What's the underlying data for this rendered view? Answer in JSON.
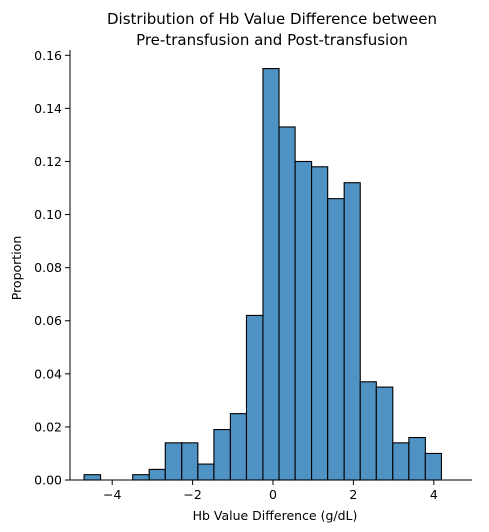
{
  "chart_data": {
    "type": "bar",
    "title_lines": [
      "Distribution of Hb Value Difference between",
      "Pre-transfusion and Post-transfusion"
    ],
    "xlabel": "Hb Value Difference (g/dL)",
    "ylabel": "Proportion",
    "xlim": [
      -5.05,
      4.95
    ],
    "ylim": [
      0,
      0.162
    ],
    "xticks": [
      -4,
      -2,
      0,
      2,
      4
    ],
    "xtick_labels": [
      "−4",
      "−2",
      "0",
      "2",
      "4"
    ],
    "yticks": [
      0.0,
      0.02,
      0.04,
      0.06,
      0.08,
      0.1,
      0.12,
      0.14,
      0.16
    ],
    "ytick_labels": [
      "0.00",
      "0.02",
      "0.04",
      "0.06",
      "0.08",
      "0.10",
      "0.12",
      "0.14",
      "0.16"
    ],
    "bins": [
      {
        "x0": -4.7,
        "x1": -4.29,
        "value": 0.002
      },
      {
        "x0": -4.29,
        "x1": -3.89,
        "value": 0.0
      },
      {
        "x0": -3.89,
        "x1": -3.49,
        "value": 0.0
      },
      {
        "x0": -3.49,
        "x1": -3.08,
        "value": 0.002
      },
      {
        "x0": -3.08,
        "x1": -2.68,
        "value": 0.004
      },
      {
        "x0": -2.68,
        "x1": -2.27,
        "value": 0.014
      },
      {
        "x0": -2.27,
        "x1": -1.87,
        "value": 0.014
      },
      {
        "x0": -1.87,
        "x1": -1.47,
        "value": 0.006
      },
      {
        "x0": -1.47,
        "x1": -1.06,
        "value": 0.019
      },
      {
        "x0": -1.06,
        "x1": -0.66,
        "value": 0.025
      },
      {
        "x0": -0.66,
        "x1": -0.25,
        "value": 0.062
      },
      {
        "x0": -0.25,
        "x1": 0.15,
        "value": 0.155
      },
      {
        "x0": 0.15,
        "x1": 0.55,
        "value": 0.133
      },
      {
        "x0": 0.55,
        "x1": 0.96,
        "value": 0.12
      },
      {
        "x0": 0.96,
        "x1": 1.36,
        "value": 0.118
      },
      {
        "x0": 1.36,
        "x1": 1.77,
        "value": 0.106
      },
      {
        "x0": 1.77,
        "x1": 2.17,
        "value": 0.112
      },
      {
        "x0": 2.17,
        "x1": 2.57,
        "value": 0.037
      },
      {
        "x0": 2.57,
        "x1": 2.98,
        "value": 0.035
      },
      {
        "x0": 2.98,
        "x1": 3.38,
        "value": 0.014
      },
      {
        "x0": 3.38,
        "x1": 3.79,
        "value": 0.016
      },
      {
        "x0": 3.79,
        "x1": 4.19,
        "value": 0.01
      }
    ],
    "bar_color": "#4f93c4",
    "edge_color": "#000000",
    "grid": false,
    "spines": [
      "left",
      "bottom"
    ]
  }
}
